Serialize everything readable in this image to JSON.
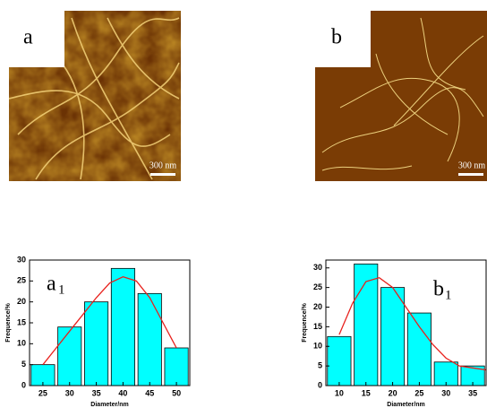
{
  "images": [
    {
      "label": "a",
      "scale": "300 nm"
    },
    {
      "label": "b",
      "scale": "300 nm"
    }
  ],
  "chart_data": [
    {
      "type": "bar",
      "panel": {
        "letter": "a",
        "subscript": "1"
      },
      "x_label": "Diameter/nm",
      "y_label": "Frequence/%",
      "x": [
        25,
        30,
        35,
        40,
        45,
        50
      ],
      "values": [
        5,
        14,
        20,
        28,
        22,
        9
      ],
      "color": "#00ffff",
      "xlim": [
        22.5,
        52.5
      ],
      "xticks": [
        25,
        30,
        35,
        40,
        45,
        50
      ],
      "ylim": [
        0,
        30
      ],
      "yticks": [
        0,
        5,
        10,
        15,
        20,
        25,
        30
      ],
      "fit": {
        "color": "#e8201c",
        "x": [
          25,
          27.5,
          30,
          32.5,
          35,
          37.5,
          40,
          42.5,
          45,
          47.5,
          50
        ],
        "values": [
          5,
          9,
          13,
          17,
          21,
          24.5,
          26,
          25,
          21,
          15,
          9
        ]
      }
    },
    {
      "type": "bar",
      "panel": {
        "letter": "b",
        "subscript": "1"
      },
      "x_label": "Diameter/nm",
      "y_label": "Frequence/%",
      "x": [
        10,
        15,
        20,
        25,
        30,
        35
      ],
      "values": [
        12.5,
        31,
        25,
        18.5,
        6,
        5
      ],
      "color": "#00ffff",
      "xlim": [
        7.5,
        37.5
      ],
      "xticks": [
        10,
        15,
        20,
        25,
        30,
        35
      ],
      "ylim": [
        0,
        32
      ],
      "yticks": [
        0,
        5,
        10,
        15,
        20,
        25,
        30
      ],
      "fit": {
        "color": "#e8201c",
        "x": [
          10,
          12.5,
          15,
          17.5,
          20,
          22.5,
          25,
          27.5,
          30,
          32.5,
          35,
          37.5
        ],
        "values": [
          13,
          21,
          26.5,
          27.5,
          25,
          20,
          15,
          10.5,
          7,
          5,
          4.5,
          4
        ]
      }
    }
  ]
}
